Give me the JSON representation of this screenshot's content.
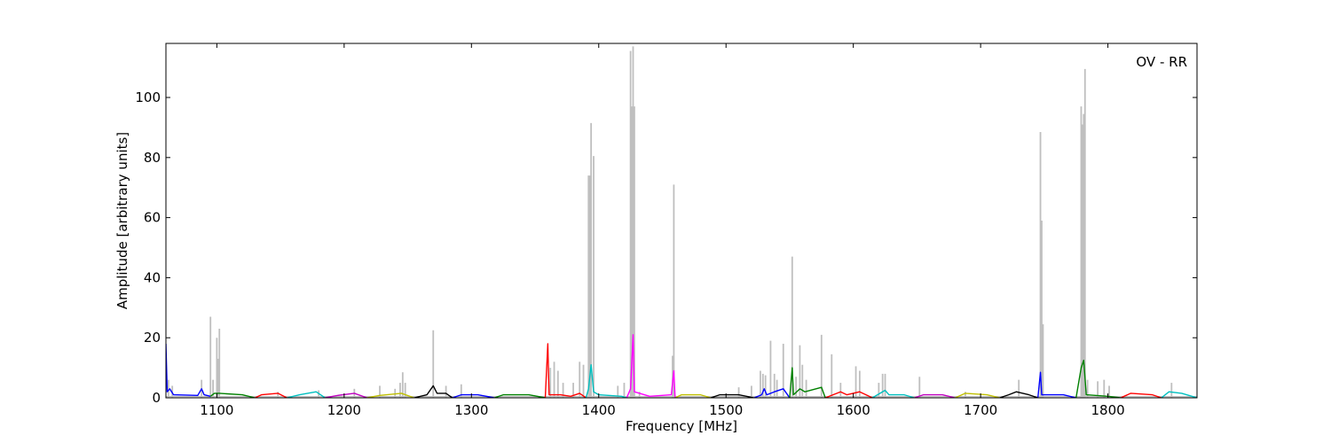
{
  "chart_data": {
    "type": "line",
    "title": "",
    "annotation": "OV - RR",
    "xlabel": "Frequency [MHz]",
    "ylabel": "Amplitude [arbitrary units]",
    "xlim": [
      1060,
      1870
    ],
    "ylim": [
      0,
      118
    ],
    "xticks": [
      1100,
      1200,
      1300,
      1400,
      1500,
      1600,
      1700,
      1800
    ],
    "yticks": [
      0,
      20,
      40,
      60,
      80,
      100
    ],
    "grid": false,
    "legend": "none",
    "raw_color": "#bfbfbf",
    "raw_spikes": [
      [
        1062,
        6
      ],
      [
        1065,
        4
      ],
      [
        1088,
        6
      ],
      [
        1095,
        27
      ],
      [
        1097,
        6
      ],
      [
        1100,
        20
      ],
      [
        1101,
        13
      ],
      [
        1102,
        23
      ],
      [
        1148,
        2
      ],
      [
        1180,
        2.5
      ],
      [
        1208,
        3
      ],
      [
        1228,
        4
      ],
      [
        1240,
        3
      ],
      [
        1244,
        5
      ],
      [
        1246,
        8.5
      ],
      [
        1248,
        5
      ],
      [
        1270,
        22.5
      ],
      [
        1280,
        4
      ],
      [
        1292,
        4.5
      ],
      [
        1362,
        10
      ],
      [
        1365,
        12
      ],
      [
        1368,
        9
      ],
      [
        1372,
        5
      ],
      [
        1380,
        5
      ],
      [
        1385,
        12
      ],
      [
        1388,
        11
      ],
      [
        1392,
        74
      ],
      [
        1393,
        74
      ],
      [
        1394,
        91.5
      ],
      [
        1396,
        80.5
      ],
      [
        1415,
        4
      ],
      [
        1420,
        5
      ],
      [
        1425,
        115.5
      ],
      [
        1426,
        97
      ],
      [
        1427,
        117
      ],
      [
        1428,
        97
      ],
      [
        1432,
        2
      ],
      [
        1458,
        14
      ],
      [
        1459,
        71
      ],
      [
        1510,
        3.5
      ],
      [
        1520,
        4
      ],
      [
        1527,
        9
      ],
      [
        1529,
        8
      ],
      [
        1531,
        7.5
      ],
      [
        1535,
        19
      ],
      [
        1538,
        8
      ],
      [
        1540,
        6
      ],
      [
        1545,
        18
      ],
      [
        1552,
        47
      ],
      [
        1555,
        7
      ],
      [
        1558,
        17.5
      ],
      [
        1560,
        11
      ],
      [
        1563,
        6
      ],
      [
        1575,
        21
      ],
      [
        1583,
        14.5
      ],
      [
        1590,
        5
      ],
      [
        1602,
        10.5
      ],
      [
        1605,
        9
      ],
      [
        1620,
        5
      ],
      [
        1623,
        8
      ],
      [
        1625,
        8
      ],
      [
        1652,
        7
      ],
      [
        1688,
        2
      ],
      [
        1730,
        6
      ],
      [
        1747,
        88.5
      ],
      [
        1748,
        59
      ],
      [
        1749,
        24.5
      ],
      [
        1779,
        97
      ],
      [
        1780,
        91
      ],
      [
        1781,
        94.5
      ],
      [
        1782,
        109.5
      ],
      [
        1784,
        6
      ],
      [
        1792,
        5.5
      ],
      [
        1797,
        6
      ],
      [
        1801,
        4
      ],
      [
        1850,
        5
      ]
    ],
    "series": [
      {
        "color": "#0000ff",
        "points": [
          [
            1060,
            18
          ],
          [
            1061,
            2
          ],
          [
            1063,
            3
          ],
          [
            1066,
            1
          ],
          [
            1085,
            0.8
          ],
          [
            1088,
            3
          ],
          [
            1090,
            1
          ],
          [
            1095,
            0.5
          ]
        ]
      },
      {
        "color": "#008000",
        "points": [
          [
            1095,
            0.5
          ],
          [
            1098,
            1.5
          ],
          [
            1102,
            1.5
          ],
          [
            1120,
            1
          ],
          [
            1130,
            0
          ]
        ]
      },
      {
        "color": "#ff0000",
        "points": [
          [
            1130,
            0
          ],
          [
            1135,
            1
          ],
          [
            1148,
            1.5
          ],
          [
            1155,
            0
          ]
        ]
      },
      {
        "color": "#00bfbf",
        "points": [
          [
            1155,
            0
          ],
          [
            1165,
            1
          ],
          [
            1178,
            2
          ],
          [
            1185,
            0
          ]
        ]
      },
      {
        "color": "#bf00bf",
        "points": [
          [
            1185,
            0
          ],
          [
            1195,
            0.8
          ],
          [
            1208,
            1.5
          ],
          [
            1218,
            0
          ]
        ]
      },
      {
        "color": "#bfbf00",
        "points": [
          [
            1218,
            0
          ],
          [
            1228,
            0.8
          ],
          [
            1245,
            1.5
          ],
          [
            1255,
            0
          ]
        ]
      },
      {
        "color": "#000000",
        "points": [
          [
            1255,
            0
          ],
          [
            1265,
            1
          ],
          [
            1270,
            4
          ],
          [
            1273,
            1.5
          ],
          [
            1280,
            1.5
          ],
          [
            1285,
            0
          ]
        ]
      },
      {
        "color": "#0000ff",
        "points": [
          [
            1285,
            0
          ],
          [
            1292,
            1
          ],
          [
            1305,
            1
          ],
          [
            1318,
            0
          ]
        ]
      },
      {
        "color": "#008000",
        "points": [
          [
            1318,
            0
          ],
          [
            1325,
            1
          ],
          [
            1345,
            1
          ],
          [
            1358,
            0
          ]
        ]
      },
      {
        "color": "#ff0000",
        "points": [
          [
            1358,
            0
          ],
          [
            1360,
            18
          ],
          [
            1361,
            1
          ],
          [
            1370,
            1
          ],
          [
            1378,
            0.5
          ],
          [
            1385,
            1.5
          ],
          [
            1390,
            0
          ]
        ]
      },
      {
        "color": "#00bfbf",
        "points": [
          [
            1390,
            0
          ],
          [
            1392,
            3
          ],
          [
            1394,
            11
          ],
          [
            1396,
            2
          ],
          [
            1400,
            1
          ],
          [
            1418,
            0.5
          ],
          [
            1422,
            0
          ]
        ]
      },
      {
        "color": "#ff00ff",
        "points": [
          [
            1422,
            0
          ],
          [
            1425,
            3
          ],
          [
            1426,
            12
          ],
          [
            1427,
            21
          ],
          [
            1428,
            2
          ],
          [
            1440,
            0.5
          ],
          [
            1457,
            1
          ],
          [
            1459,
            9
          ],
          [
            1460,
            0
          ]
        ]
      },
      {
        "color": "#bfbf00",
        "points": [
          [
            1460,
            0
          ],
          [
            1465,
            1
          ],
          [
            1480,
            1
          ],
          [
            1488,
            0
          ]
        ]
      },
      {
        "color": "#000000",
        "points": [
          [
            1488,
            0
          ],
          [
            1495,
            1
          ],
          [
            1510,
            1
          ],
          [
            1522,
            0
          ]
        ]
      },
      {
        "color": "#0000ff",
        "points": [
          [
            1522,
            0
          ],
          [
            1528,
            1
          ],
          [
            1530,
            3
          ],
          [
            1532,
            1
          ],
          [
            1538,
            2
          ],
          [
            1545,
            3
          ],
          [
            1550,
            0
          ]
        ]
      },
      {
        "color": "#008000",
        "points": [
          [
            1550,
            0
          ],
          [
            1552,
            10
          ],
          [
            1553,
            1
          ],
          [
            1558,
            3
          ],
          [
            1562,
            2
          ],
          [
            1575,
            3.5
          ],
          [
            1578,
            0
          ]
        ]
      },
      {
        "color": "#ff0000",
        "points": [
          [
            1578,
            0
          ],
          [
            1590,
            2
          ],
          [
            1595,
            1
          ],
          [
            1605,
            2
          ],
          [
            1615,
            0
          ]
        ]
      },
      {
        "color": "#00bfbf",
        "points": [
          [
            1615,
            0
          ],
          [
            1625,
            2.5
          ],
          [
            1628,
            1
          ],
          [
            1640,
            1
          ],
          [
            1648,
            0
          ]
        ]
      },
      {
        "color": "#bf00bf",
        "points": [
          [
            1648,
            0
          ],
          [
            1655,
            1
          ],
          [
            1670,
            1
          ],
          [
            1680,
            0
          ]
        ]
      },
      {
        "color": "#bfbf00",
        "points": [
          [
            1680,
            0
          ],
          [
            1688,
            1.5
          ],
          [
            1705,
            1
          ],
          [
            1715,
            0
          ]
        ]
      },
      {
        "color": "#000000",
        "points": [
          [
            1715,
            0
          ],
          [
            1722,
            1
          ],
          [
            1728,
            2
          ],
          [
            1738,
            1
          ],
          [
            1745,
            0
          ]
        ]
      },
      {
        "color": "#0000ff",
        "points": [
          [
            1745,
            0
          ],
          [
            1747,
            8.5
          ],
          [
            1748,
            1
          ],
          [
            1765,
            1
          ],
          [
            1775,
            0
          ]
        ]
      },
      {
        "color": "#008000",
        "points": [
          [
            1775,
            0
          ],
          [
            1779,
            10
          ],
          [
            1781,
            12.5
          ],
          [
            1783,
            1
          ],
          [
            1800,
            0.5
          ],
          [
            1810,
            0
          ]
        ]
      },
      {
        "color": "#ff0000",
        "points": [
          [
            1810,
            0
          ],
          [
            1818,
            1.5
          ],
          [
            1835,
            1
          ],
          [
            1842,
            0
          ]
        ]
      },
      {
        "color": "#00bfbf",
        "points": [
          [
            1842,
            0
          ],
          [
            1848,
            2
          ],
          [
            1858,
            1.5
          ],
          [
            1870,
            0
          ]
        ]
      }
    ]
  }
}
